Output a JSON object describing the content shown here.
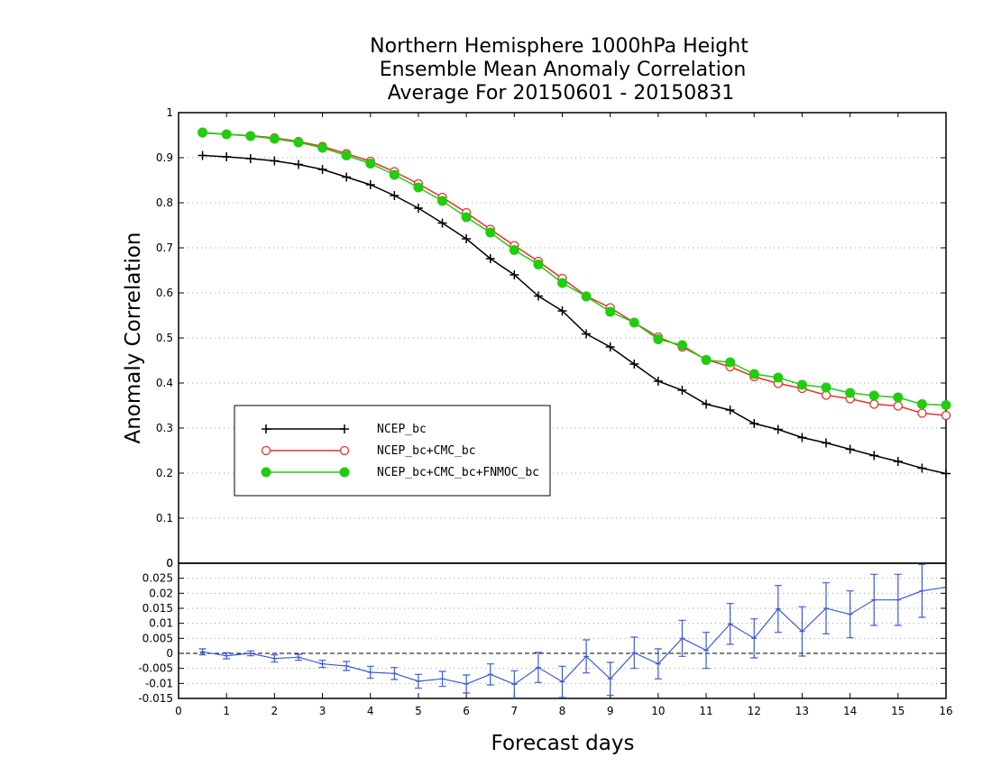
{
  "chart_data": [
    {
      "type": "line",
      "title": [
        "Northern Hemisphere 1000hPa Height",
        "Ensemble Mean Anomaly Correlation",
        "Average For 20150601 - 20150831"
      ],
      "xlabel": "",
      "ylabel": "Anomaly Correlation",
      "xlim": [
        0,
        16
      ],
      "ylim": [
        0,
        1
      ],
      "yticks": [
        0,
        0.1,
        0.2,
        0.3,
        0.4,
        0.5,
        0.6,
        0.7,
        0.8,
        0.9,
        1
      ],
      "ytick_labels": [
        "0",
        "0.1",
        "0.2",
        "0.3",
        "0.4",
        "0.5",
        "0.6",
        "0.7",
        "0.8",
        "0.9",
        "1"
      ],
      "grid": "horizontal dotted",
      "legend_position": "lower-left",
      "x": [
        0.5,
        1,
        1.5,
        2,
        2.5,
        3,
        3.5,
        4,
        4.5,
        5,
        5.5,
        6,
        6.5,
        7,
        7.5,
        8,
        8.5,
        9,
        9.5,
        10,
        10.5,
        11,
        11.5,
        12,
        12.5,
        13,
        13.5,
        14,
        14.5,
        15,
        15.5,
        16
      ],
      "series": [
        {
          "name": "NCEP_bc",
          "color": "#000000",
          "marker": "plus",
          "values": [
            0.905,
            0.902,
            0.898,
            0.893,
            0.885,
            0.874,
            0.857,
            0.84,
            0.816,
            0.788,
            0.755,
            0.72,
            0.676,
            0.64,
            0.593,
            0.56,
            0.509,
            0.48,
            0.442,
            0.404,
            0.384,
            0.353,
            0.34,
            0.31,
            0.297,
            0.279,
            0.267,
            0.253,
            0.239,
            0.226,
            0.211,
            0.199
          ]
        },
        {
          "name": "NCEP_bc+CMC_bc",
          "color": "#e8312a",
          "marker": "open-circle",
          "values": [
            0.955,
            0.952,
            0.949,
            0.944,
            0.936,
            0.925,
            0.909,
            0.892,
            0.869,
            0.842,
            0.812,
            0.778,
            0.741,
            0.705,
            0.67,
            0.632,
            0.593,
            0.567,
            0.534,
            0.502,
            0.48,
            0.452,
            0.436,
            0.414,
            0.399,
            0.388,
            0.373,
            0.365,
            0.353,
            0.349,
            0.333,
            0.328
          ]
        },
        {
          "name": "NCEP_bc+CMC_bc+FNMOC_bc",
          "color": "#22cc11",
          "marker": "filled-circle",
          "values": [
            0.956,
            0.952,
            0.948,
            0.942,
            0.934,
            0.922,
            0.905,
            0.887,
            0.862,
            0.834,
            0.804,
            0.768,
            0.734,
            0.695,
            0.663,
            0.622,
            0.592,
            0.558,
            0.534,
            0.497,
            0.484,
            0.451,
            0.446,
            0.42,
            0.412,
            0.396,
            0.39,
            0.378,
            0.372,
            0.368,
            0.353,
            0.351
          ]
        }
      ]
    },
    {
      "type": "line",
      "title": "",
      "xlabel": "Forecast days",
      "ylabel": "",
      "xlim": [
        0,
        16
      ],
      "ylim": [
        -0.015,
        0.03
      ],
      "xticks": [
        0,
        1,
        2,
        3,
        4,
        5,
        6,
        7,
        8,
        9,
        10,
        11,
        12,
        13,
        14,
        15,
        16
      ],
      "xtick_labels": [
        "0",
        "1",
        "2",
        "3",
        "4",
        "5",
        "6",
        "7",
        "8",
        "9",
        "10",
        "11",
        "12",
        "13",
        "14",
        "15",
        "16"
      ],
      "yticks": [
        -0.015,
        -0.01,
        -0.005,
        0,
        0.005,
        0.01,
        0.015,
        0.02,
        0.025
      ],
      "ytick_labels": [
        "-0.015",
        "-0.01",
        "-0.005",
        "0",
        "0.005",
        "0.01",
        "0.015",
        "0.02",
        "0.025"
      ],
      "top_label": "0",
      "grid": "horizontal dotted",
      "x": [
        0.5,
        1,
        1.5,
        2,
        2.5,
        3,
        3.5,
        4,
        4.5,
        5,
        5.5,
        6,
        6.5,
        7,
        7.5,
        8,
        8.5,
        9,
        9.5,
        10,
        10.5,
        11,
        11.5,
        12,
        12.5,
        13,
        13.5,
        14,
        14.5,
        15,
        15.5,
        16
      ],
      "series": [
        {
          "color": "#3a5ad8",
          "marker": "error-bar",
          "values": [
            0.0005,
            -0.0008,
            0.0,
            -0.0017,
            -0.0013,
            -0.0035,
            -0.0042,
            -0.0063,
            -0.0067,
            -0.0093,
            -0.0085,
            -0.0102,
            -0.007,
            -0.0103,
            -0.0047,
            -0.0095,
            -0.001,
            -0.0085,
            0.0002,
            -0.0035,
            0.005,
            0.001,
            0.0098,
            0.005,
            0.0148,
            0.0073,
            0.015,
            0.013,
            0.0178,
            0.0178,
            0.0208,
            0.022
          ],
          "errors": [
            0.001,
            0.001,
            0.0008,
            0.0012,
            0.001,
            0.0012,
            0.0015,
            0.002,
            0.002,
            0.0023,
            0.0025,
            0.003,
            0.0035,
            0.0045,
            0.005,
            0.0052,
            0.0055,
            0.0055,
            0.0052,
            0.005,
            0.006,
            0.006,
            0.0068,
            0.0065,
            0.0078,
            0.0082,
            0.0085,
            0.0078,
            0.0085,
            0.0085,
            0.0088,
            0.0
          ]
        }
      ]
    }
  ]
}
